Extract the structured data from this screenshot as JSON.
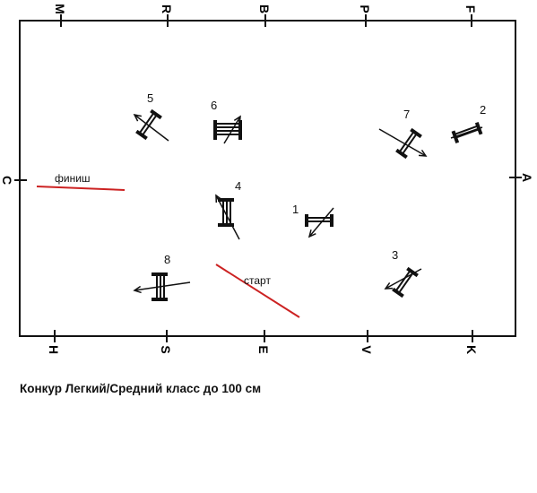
{
  "arena": {
    "top_letters": [
      "M",
      "R",
      "B",
      "P",
      "F"
    ],
    "bottom_letters": [
      "H",
      "S",
      "E",
      "V",
      "K"
    ],
    "left_letter": "C",
    "right_letter": "A"
  },
  "obstacles": [
    {
      "number": "1"
    },
    {
      "number": "2"
    },
    {
      "number": "3"
    },
    {
      "number": "4"
    },
    {
      "number": "5"
    },
    {
      "number": "6"
    },
    {
      "number": "7"
    },
    {
      "number": "8"
    }
  ],
  "finish_label": "финиш",
  "start_label": "старт",
  "caption": "Конкур Легкий/Средний класс до 100 см",
  "colors": {
    "line": "#111111",
    "start_finish": "#cc2222"
  }
}
